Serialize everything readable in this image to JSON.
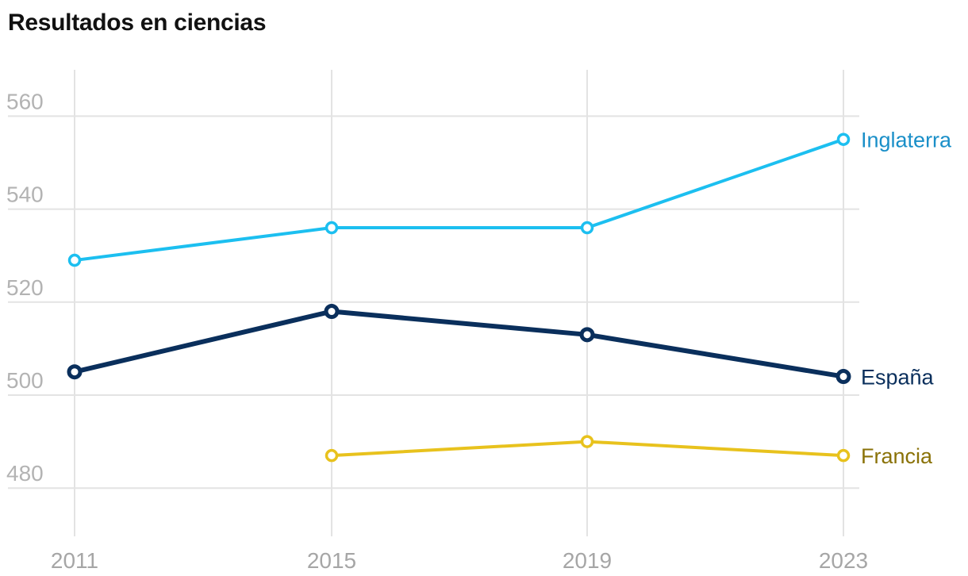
{
  "chart_data": {
    "type": "line",
    "title": "Resultados en ciencias",
    "xlabel": "",
    "ylabel": "",
    "x": [
      "2011",
      "2015",
      "2019",
      "2023"
    ],
    "ylim": [
      470,
      570
    ],
    "yticks": [
      480,
      500,
      520,
      540,
      560
    ],
    "grid": true,
    "legend": "end-of-line labels",
    "series": [
      {
        "name": "Inglaterra",
        "values": [
          529,
          536,
          536,
          555
        ],
        "color": "#1cbff0",
        "label_color": "#1a8fc8",
        "marker": "hollow"
      },
      {
        "name": "España",
        "values": [
          505,
          518,
          513,
          504
        ],
        "color": "#0a2f5c",
        "label_color": "#0a2f5c",
        "marker": "hollow"
      },
      {
        "name": "Francia",
        "values": [
          null,
          487,
          490,
          487
        ],
        "color": "#e8c21d",
        "label_color": "#8a7208",
        "marker": "hollow"
      }
    ]
  }
}
